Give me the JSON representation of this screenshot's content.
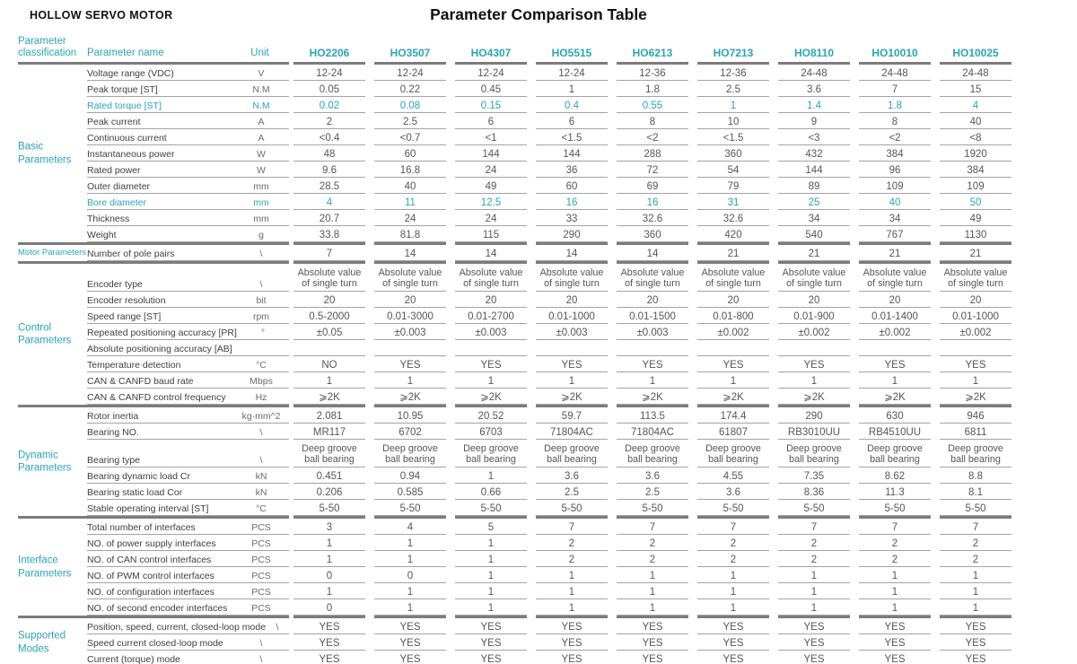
{
  "colors": {
    "accent": "#2ba4b6",
    "row_line": "#a3a3a3",
    "group_bar": "#7c7c7c"
  },
  "page": {
    "subtitle": "HOLLOW SERVO MOTOR",
    "title": "Parameter Comparison Table"
  },
  "table": {
    "headers": {
      "classification": "Parameter classification",
      "name": "Parameter name",
      "unit": "Unit"
    },
    "models": [
      "HO2206",
      "HO3507",
      "HO4307",
      "HO5515",
      "HO6213",
      "HO7213",
      "HO8110",
      "HO10010",
      "HO10025"
    ],
    "groups": [
      {
        "classification": "Basic Parameters",
        "rows": [
          {
            "name": "Voltage range (VDC)",
            "unit": "V",
            "values": [
              "12-24",
              "12-24",
              "12-24",
              "12-24",
              "12-36",
              "12-36",
              "24-48",
              "24-48",
              "24-48"
            ]
          },
          {
            "name": "Peak torque [ST]",
            "unit": "N.M",
            "values": [
              "0.05",
              "0.22",
              "0.45",
              "1",
              "1.8",
              "2.5",
              "3.6",
              "7",
              "15"
            ]
          },
          {
            "name": "Rated torque [ST]",
            "unit": "N.M",
            "highlight": true,
            "values": [
              "0.02",
              "0.08",
              "0.15",
              "0.4",
              "0.55",
              "1",
              "1.4",
              "1.8",
              "4"
            ]
          },
          {
            "name": "Peak current",
            "unit": "A",
            "values": [
              "2",
              "2.5",
              "6",
              "6",
              "8",
              "10",
              "9",
              "8",
              "40"
            ]
          },
          {
            "name": "Continuous current",
            "unit": "A",
            "values": [
              "<0.4",
              "<0.7",
              "<1",
              "<1.5",
              "<2",
              "<1.5",
              "<3",
              "<2",
              "<8"
            ]
          },
          {
            "name": "Instantaneous power",
            "unit": "W",
            "values": [
              "48",
              "60",
              "144",
              "144",
              "288",
              "360",
              "432",
              "384",
              "1920"
            ]
          },
          {
            "name": "Rated power",
            "unit": "W",
            "values": [
              "9.6",
              "16.8",
              "24",
              "36",
              "72",
              "54",
              "144",
              "96",
              "384"
            ]
          },
          {
            "name": "Outer diameter",
            "unit": "mm",
            "values": [
              "28.5",
              "40",
              "49",
              "60",
              "69",
              "79",
              "89",
              "109",
              "109"
            ]
          },
          {
            "name": "Bore diameter",
            "unit": "mm",
            "highlight": true,
            "values": [
              "4",
              "11",
              "12.5",
              "16",
              "16",
              "31",
              "25",
              "40",
              "50"
            ]
          },
          {
            "name": "Thickness",
            "unit": "mm",
            "values": [
              "20.7",
              "24",
              "24",
              "33",
              "32.6",
              "32.6",
              "34",
              "34",
              "49"
            ]
          },
          {
            "name": "Weight",
            "unit": "g",
            "values": [
              "33.8",
              "81.8",
              "115",
              "290",
              "360",
              "420",
              "540",
              "767",
              "1130"
            ]
          }
        ]
      },
      {
        "classification": "Motor Parameters",
        "small_label": true,
        "rows": [
          {
            "name": "Number of pole pairs",
            "unit": "\\",
            "values": [
              "7",
              "14",
              "14",
              "14",
              "14",
              "21",
              "21",
              "21",
              "21"
            ]
          }
        ]
      },
      {
        "classification": "Control Parameters",
        "rows": [
          {
            "name": "Encoder type",
            "unit": "\\",
            "tall": true,
            "values": [
              "Absolute value of single turn",
              "Absolute value of single turn",
              "Absolute value of single turn",
              "Absolute value of single turn",
              "Absolute value of single turn",
              "Absolute value of single turn",
              "Absolute value of single turn",
              "Absolute value of single turn",
              "Absolute value of single turn"
            ]
          },
          {
            "name": "Encoder resolution",
            "unit": "bit",
            "values": [
              "20",
              "20",
              "20",
              "20",
              "20",
              "20",
              "20",
              "20",
              "20"
            ]
          },
          {
            "name": "Speed range [ST]",
            "unit": "rpm",
            "values": [
              "0.5-2000",
              "0.01-3000",
              "0.01-2700",
              "0.01-1000",
              "0.01-1500",
              "0.01-800",
              "0.01-900",
              "0.01-1400",
              "0.01-1000"
            ]
          },
          {
            "name": "Repeated positioning accuracy [PR]",
            "unit": "°",
            "values": [
              "±0.05",
              "±0.003",
              "±0.003",
              "±0.003",
              "±0.003",
              "±0.002",
              "±0.002",
              "±0.002",
              "±0.002"
            ]
          },
          {
            "name": "Absolute positioning accuracy [AB]",
            "unit": "",
            "values": [
              "",
              "",
              "",
              "",
              "",
              "",
              "",
              "",
              ""
            ]
          },
          {
            "name": "Temperature detection",
            "unit": "°C",
            "values": [
              "NO",
              "YES",
              "YES",
              "YES",
              "YES",
              "YES",
              "YES",
              "YES",
              "YES"
            ]
          },
          {
            "name": "CAN & CANFD baud rate",
            "unit": "Mbps",
            "values": [
              "1",
              "1",
              "1",
              "1",
              "1",
              "1",
              "1",
              "1",
              "1"
            ]
          },
          {
            "name": "CAN & CANFD control frequency",
            "unit": "Hz",
            "values": [
              "⩾2K",
              "⩾2K",
              "⩾2K",
              "⩾2K",
              "⩾2K",
              "⩾2K",
              "⩾2K",
              "⩾2K",
              "⩾2K"
            ]
          }
        ]
      },
      {
        "classification": "Dynamic Parameters",
        "rows": [
          {
            "name": "Rotor inertia",
            "unit": "kg·mm^2",
            "values": [
              "2.081",
              "10.95",
              "20.52",
              "59.7",
              "113.5",
              "174.4",
              "290",
              "630",
              "946"
            ]
          },
          {
            "name": "Bearing NO.",
            "unit": "\\",
            "values": [
              "MR117",
              "6702",
              "6703",
              "71804AC",
              "71804AC",
              "61807",
              "RB3010UU",
              "RB4510UU",
              "6811"
            ]
          },
          {
            "name": "Bearing type",
            "unit": "\\",
            "tall": true,
            "values": [
              "Deep groove ball bearing",
              "Deep groove ball bearing",
              "Deep groove ball bearing",
              "Deep groove ball bearing",
              "Deep groove ball bearing",
              "Deep groove ball bearing",
              "Deep groove ball bearing",
              "Deep groove ball bearing",
              "Deep groove ball bearing"
            ]
          },
          {
            "name": "Bearing dynamic load Cr",
            "unit": "kN",
            "values": [
              "0.451",
              "0.94",
              "1",
              "3.6",
              "3.6",
              "4.55",
              "7.35",
              "8.62",
              "8.8"
            ]
          },
          {
            "name": "Bearing static load Cor",
            "unit": "kN",
            "values": [
              "0.206",
              "0.585",
              "0.66",
              "2.5",
              "2.5",
              "3.6",
              "8.36",
              "11.3",
              "8.1"
            ]
          },
          {
            "name": "Stable operating interval [ST]",
            "unit": "°C",
            "values": [
              "5-50",
              "5-50",
              "5-50",
              "5-50",
              "5-50",
              "5-50",
              "5-50",
              "5-50",
              "5-50"
            ]
          }
        ]
      },
      {
        "classification": "Interface Parameters",
        "rows": [
          {
            "name": "Total number of interfaces",
            "unit": "PCS",
            "values": [
              "3",
              "4",
              "5",
              "7",
              "7",
              "7",
              "7",
              "7",
              "7"
            ]
          },
          {
            "name": "NO. of power supply interfaces",
            "unit": "PCS",
            "values": [
              "1",
              "1",
              "1",
              "2",
              "2",
              "2",
              "2",
              "2",
              "2"
            ]
          },
          {
            "name": "NO. of CAN control interfaces",
            "unit": "PCS",
            "values": [
              "1",
              "1",
              "1",
              "2",
              "2",
              "2",
              "2",
              "2",
              "2"
            ]
          },
          {
            "name": "NO. of PWM control interfaces",
            "unit": "PCS",
            "values": [
              "0",
              "0",
              "1",
              "1",
              "1",
              "1",
              "1",
              "1",
              "1"
            ]
          },
          {
            "name": "NO. of configuration interfaces",
            "unit": "PCS",
            "values": [
              "1",
              "1",
              "1",
              "1",
              "1",
              "1",
              "1",
              "1",
              "1"
            ]
          },
          {
            "name": "NO. of second encoder interfaces",
            "unit": "PCS",
            "values": [
              "0",
              "1",
              "1",
              "1",
              "1",
              "1",
              "1",
              "1",
              "1"
            ]
          }
        ]
      },
      {
        "classification": "Supported Modes",
        "rows": [
          {
            "name": "Position, speed, current, closed-loop mode",
            "unit": "\\",
            "values": [
              "YES",
              "YES",
              "YES",
              "YES",
              "YES",
              "YES",
              "YES",
              "YES",
              "YES"
            ]
          },
          {
            "name": "Speed current closed-loop mode",
            "unit": "\\",
            "values": [
              "YES",
              "YES",
              "YES",
              "YES",
              "YES",
              "YES",
              "YES",
              "YES",
              "YES"
            ]
          },
          {
            "name": "Current (torque) mode",
            "unit": "\\",
            "values": [
              "YES",
              "YES",
              "YES",
              "YES",
              "YES",
              "YES",
              "YES",
              "YES",
              "YES"
            ]
          }
        ]
      }
    ]
  }
}
